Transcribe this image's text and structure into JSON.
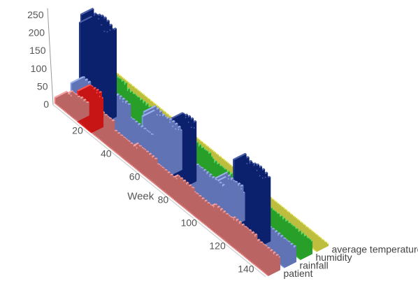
{
  "chart_data": {
    "type": "bar",
    "view": "3d-depth",
    "xlabel": "Week",
    "xlim": [
      1,
      150
    ],
    "x_ticks": [
      "20",
      "40",
      "60",
      "80",
      "100",
      "120",
      "140"
    ],
    "ylim": [
      0,
      270
    ],
    "y_ticks": [
      "0",
      "50",
      "100",
      "150",
      "200",
      "250"
    ],
    "series_order_front_to_back": [
      "patient",
      "rainfall",
      "humidity",
      "average temperature"
    ],
    "series": [
      {
        "name": "patient",
        "color": "#f08080",
        "highlight_color": "#ff1a1a",
        "highlight_weeks": [
          17,
          26
        ],
        "segments": [
          {
            "from": 1,
            "to": 4,
            "value": 18
          },
          {
            "from": 5,
            "to": 10,
            "value": 34
          },
          {
            "from": 11,
            "to": 16,
            "value": 38
          },
          {
            "from": 17,
            "to": 26,
            "value": 95
          },
          {
            "from": 27,
            "to": 34,
            "value": 45
          },
          {
            "from": 35,
            "to": 50,
            "value": 22
          },
          {
            "from": 51,
            "to": 64,
            "value": 35
          },
          {
            "from": 65,
            "to": 78,
            "value": 25
          },
          {
            "from": 79,
            "to": 90,
            "value": 38
          },
          {
            "from": 91,
            "to": 104,
            "value": 30
          },
          {
            "from": 105,
            "to": 118,
            "value": 42
          },
          {
            "from": 119,
            "to": 134,
            "value": 48
          },
          {
            "from": 135,
            "to": 150,
            "value": 40
          }
        ]
      },
      {
        "name": "rainfall",
        "color": "#7b94e8",
        "highlight_color": "#0f2a8c",
        "segments": [
          {
            "from": 1,
            "to": 6,
            "value": 40,
            "dark": false
          },
          {
            "from": 7,
            "to": 24,
            "value": 255,
            "dark": true
          },
          {
            "from": 25,
            "to": 34,
            "value": 70,
            "dark": false
          },
          {
            "from": 35,
            "to": 50,
            "value": 35,
            "dark": false
          },
          {
            "from": 51,
            "to": 70,
            "value": 120,
            "dark": false
          },
          {
            "from": 71,
            "to": 80,
            "value": 170,
            "dark": true
          },
          {
            "from": 81,
            "to": 100,
            "value": 55,
            "dark": false
          },
          {
            "from": 101,
            "to": 114,
            "value": 95,
            "dark": false
          },
          {
            "from": 115,
            "to": 132,
            "value": 190,
            "dark": true
          },
          {
            "from": 133,
            "to": 150,
            "value": 45,
            "dark": false
          }
        ]
      },
      {
        "name": "humidity",
        "color": "#33cc33",
        "segments": [
          {
            "from": 1,
            "to": 20,
            "value": 60
          },
          {
            "from": 21,
            "to": 40,
            "value": 50
          },
          {
            "from": 41,
            "to": 60,
            "value": 40
          },
          {
            "from": 61,
            "to": 80,
            "value": 55
          },
          {
            "from": 81,
            "to": 100,
            "value": 45
          },
          {
            "from": 101,
            "to": 120,
            "value": 55
          },
          {
            "from": 121,
            "to": 150,
            "value": 40
          }
        ]
      },
      {
        "name": "average temperature",
        "color": "#f2f250",
        "segments": [
          {
            "from": 1,
            "to": 150,
            "value": 8
          }
        ]
      }
    ]
  }
}
